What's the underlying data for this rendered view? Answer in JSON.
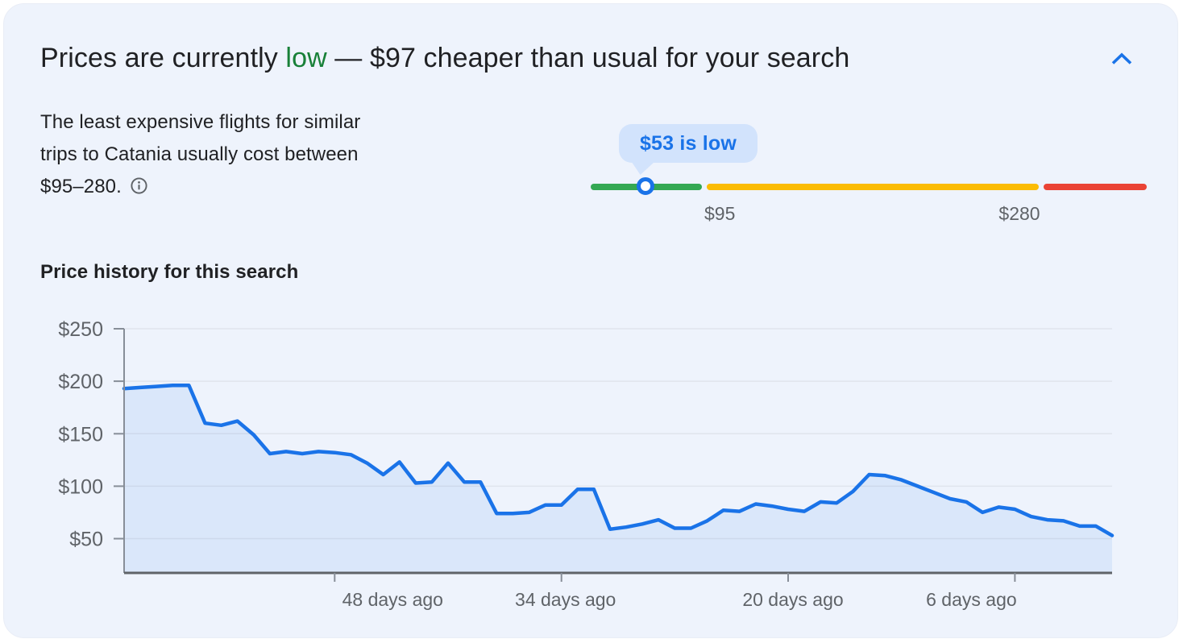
{
  "header": {
    "title_prefix": "Prices are currently ",
    "title_status": "low",
    "title_suffix": " — $97 cheaper than usual for your search",
    "status_color": "#188038",
    "collapse_icon": "chevron-up"
  },
  "description": {
    "lines": [
      "The least expensive flights for similar",
      "trips to Catania usually cost between",
      "$95–280."
    ],
    "info_icon": "info-circle"
  },
  "slider": {
    "tooltip": "$53 is low",
    "current_price": 53,
    "min_label": "$95",
    "max_label": "$280",
    "tooltip_bg": "#d2e3fc",
    "tooltip_text_color": "#1a73e8",
    "colors": {
      "low": "#34a853",
      "typical": "#fbbc04",
      "high": "#ea4335",
      "marker": "#1a73e8"
    }
  },
  "chart_data": {
    "type": "area",
    "title": "Price history for this search",
    "xlabel": "",
    "ylabel": "",
    "x_unit": "days ago",
    "x_days_ago": [
      61,
      60,
      59,
      58,
      57,
      56,
      55,
      54,
      53,
      52,
      51,
      50,
      49,
      48,
      47,
      46,
      45,
      44,
      43,
      42,
      41,
      40,
      39,
      38,
      37,
      36,
      35,
      34,
      33,
      32,
      31,
      30,
      29,
      28,
      27,
      26,
      25,
      24,
      23,
      22,
      21,
      20,
      19,
      18,
      17,
      16,
      15,
      14,
      13,
      12,
      11,
      10,
      9,
      8,
      7,
      6,
      5,
      4,
      3,
      2,
      1,
      0
    ],
    "values": [
      193,
      194,
      195,
      196,
      196,
      160,
      158,
      162,
      149,
      131,
      133,
      131,
      133,
      132,
      130,
      122,
      111,
      123,
      103,
      104,
      122,
      104,
      104,
      74,
      74,
      75,
      82,
      82,
      97,
      97,
      59,
      61,
      64,
      68,
      60,
      60,
      67,
      77,
      76,
      83,
      81,
      78,
      76,
      85,
      84,
      95,
      111,
      110,
      106,
      100,
      94,
      88,
      85,
      75,
      80,
      78,
      71,
      68,
      67,
      62,
      62,
      53
    ],
    "x_ticks_days_ago": [
      48,
      34,
      20,
      6
    ],
    "x_tick_labels": [
      "48 days ago",
      "34 days ago",
      "20 days ago",
      "6 days ago"
    ],
    "y_ticks": [
      50,
      100,
      150,
      200,
      250
    ],
    "y_tick_labels": [
      "$50",
      "$100",
      "$150",
      "$200",
      "$250"
    ],
    "ylim": [
      18,
      250
    ],
    "grid": "horizontal",
    "legend": "none",
    "line_color": "#1a73e8",
    "fill_color": "rgba(26,115,232,0.09)",
    "axis_color": "#5f6368",
    "tick_color": "#878e98",
    "gridline_color": "#e0e4ed",
    "label_color": "#5f6368"
  }
}
